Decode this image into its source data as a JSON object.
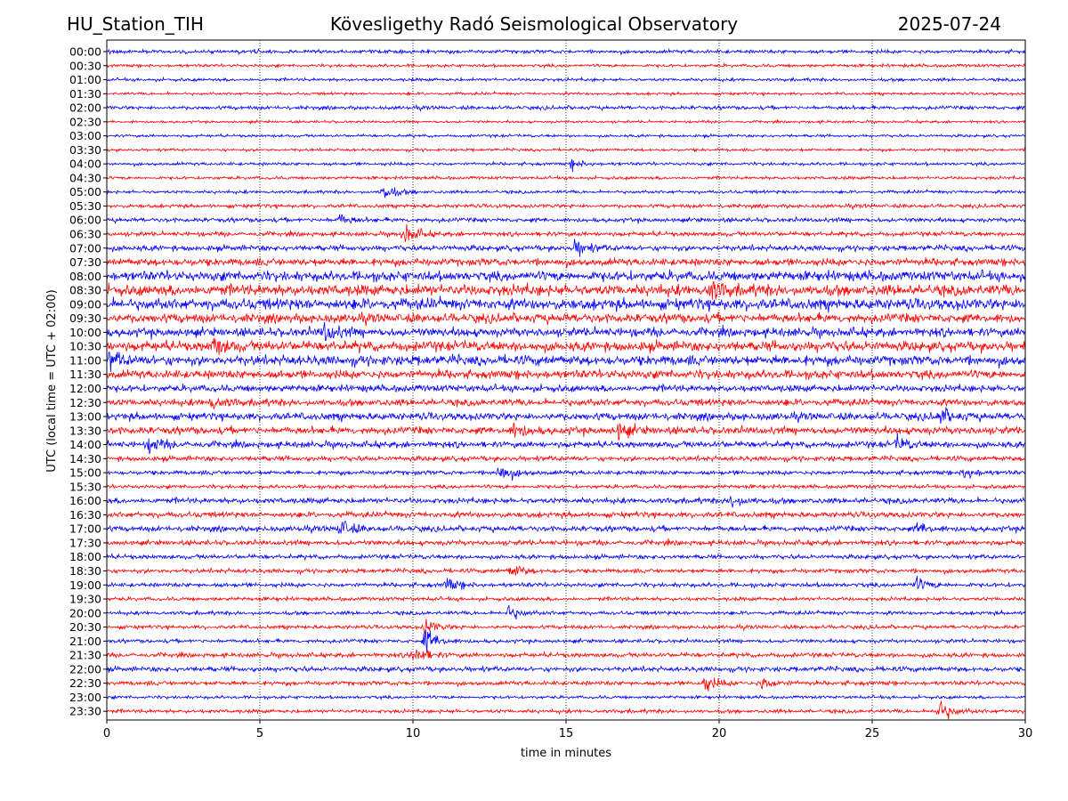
{
  "header": {
    "station": "HU_Station_TIH",
    "title": "Kövesligethy Radó Seismological Observatory",
    "date": "2025-07-24"
  },
  "colors": {
    "trace_a": "#0000ff",
    "trace_b": "#ff0000",
    "frame": "#000000",
    "grid": "#000000"
  },
  "chart_data": {
    "type": "line",
    "subtype": "helicorder / seismogram drum plot",
    "xlabel": "time in minutes",
    "ylabel": "UTC (local time = UTC + 02:00)",
    "xlim": [
      0,
      30
    ],
    "x_ticks": [
      0,
      5,
      10,
      15,
      20,
      25,
      30
    ],
    "x_tick_labels": [
      "0",
      "5",
      "10",
      "15",
      "20",
      "25",
      "30"
    ],
    "grid": "vertical dotted lines at 5, 10, 15, 20, 25 minutes",
    "trace_color_order": [
      "blue",
      "red"
    ],
    "rows": [
      "00:00",
      "00:30",
      "01:00",
      "01:30",
      "02:00",
      "02:30",
      "03:00",
      "03:30",
      "04:00",
      "04:30",
      "05:00",
      "05:30",
      "06:00",
      "06:30",
      "07:00",
      "07:30",
      "08:00",
      "08:30",
      "09:00",
      "09:30",
      "10:00",
      "10:30",
      "11:00",
      "11:30",
      "12:00",
      "12:30",
      "13:00",
      "13:30",
      "14:00",
      "14:30",
      "15:00",
      "15:30",
      "16:00",
      "16:30",
      "17:00",
      "17:30",
      "18:00",
      "18:30",
      "19:00",
      "19:30",
      "20:00",
      "20:30",
      "21:00",
      "21:30",
      "22:00",
      "22:30",
      "23:00",
      "23:30"
    ],
    "noise_level": [
      0.3,
      0.25,
      0.25,
      0.22,
      0.3,
      0.2,
      0.22,
      0.22,
      0.25,
      0.25,
      0.25,
      0.3,
      0.35,
      0.35,
      0.45,
      0.6,
      0.8,
      0.9,
      0.9,
      0.75,
      0.7,
      0.8,
      0.8,
      0.7,
      0.55,
      0.55,
      0.6,
      0.6,
      0.5,
      0.4,
      0.35,
      0.3,
      0.45,
      0.45,
      0.45,
      0.4,
      0.35,
      0.35,
      0.35,
      0.3,
      0.3,
      0.3,
      0.3,
      0.35,
      0.4,
      0.35,
      0.25,
      0.3
    ],
    "events": [
      {
        "row": "04:00",
        "minute": 15.2,
        "amplitude": 0.8
      },
      {
        "row": "05:00",
        "minute": 9.0,
        "amplitude": 1.6
      },
      {
        "row": "06:00",
        "minute": 7.6,
        "amplitude": 1.0
      },
      {
        "row": "06:30",
        "minute": 9.7,
        "amplitude": 2.0
      },
      {
        "row": "07:00",
        "minute": 15.3,
        "amplitude": 1.5
      },
      {
        "row": "08:30",
        "minute": 19.7,
        "amplitude": 1.6
      },
      {
        "row": "10:00",
        "minute": 7.1,
        "amplitude": 1.8
      },
      {
        "row": "10:30",
        "minute": 3.5,
        "amplitude": 1.4
      },
      {
        "row": "11:00",
        "minute": 0.1,
        "amplitude": 1.3
      },
      {
        "row": "12:30",
        "minute": 3.4,
        "amplitude": 1.2
      },
      {
        "row": "13:00",
        "minute": 27.2,
        "amplitude": 1.4
      },
      {
        "row": "13:30",
        "minute": 13.3,
        "amplitude": 1.4
      },
      {
        "row": "13:30",
        "minute": 16.7,
        "amplitude": 1.3
      },
      {
        "row": "14:00",
        "minute": 1.4,
        "amplitude": 1.3
      },
      {
        "row": "14:00",
        "minute": 25.8,
        "amplitude": 1.2
      },
      {
        "row": "15:00",
        "minute": 12.8,
        "amplitude": 1.8
      },
      {
        "row": "15:00",
        "minute": 28.0,
        "amplitude": 1.2
      },
      {
        "row": "16:00",
        "minute": 20.4,
        "amplitude": 1.2
      },
      {
        "row": "17:00",
        "minute": 7.6,
        "amplitude": 1.6
      },
      {
        "row": "17:00",
        "minute": 26.5,
        "amplitude": 1.0
      },
      {
        "row": "18:30",
        "minute": 13.2,
        "amplitude": 1.4
      },
      {
        "row": "19:00",
        "minute": 11.1,
        "amplitude": 1.2
      },
      {
        "row": "19:00",
        "minute": 26.4,
        "amplitude": 1.2
      },
      {
        "row": "20:00",
        "minute": 13.1,
        "amplitude": 1.2
      },
      {
        "row": "20:30",
        "minute": 10.4,
        "amplitude": 1.3
      },
      {
        "row": "21:00",
        "minute": 10.4,
        "amplitude": 2.3
      },
      {
        "row": "21:30",
        "minute": 10.0,
        "amplitude": 2.0
      },
      {
        "row": "22:30",
        "minute": 19.5,
        "amplitude": 1.4
      },
      {
        "row": "22:30",
        "minute": 21.4,
        "amplitude": 1.2
      },
      {
        "row": "23:30",
        "minute": 27.1,
        "amplitude": 2.4
      }
    ]
  }
}
